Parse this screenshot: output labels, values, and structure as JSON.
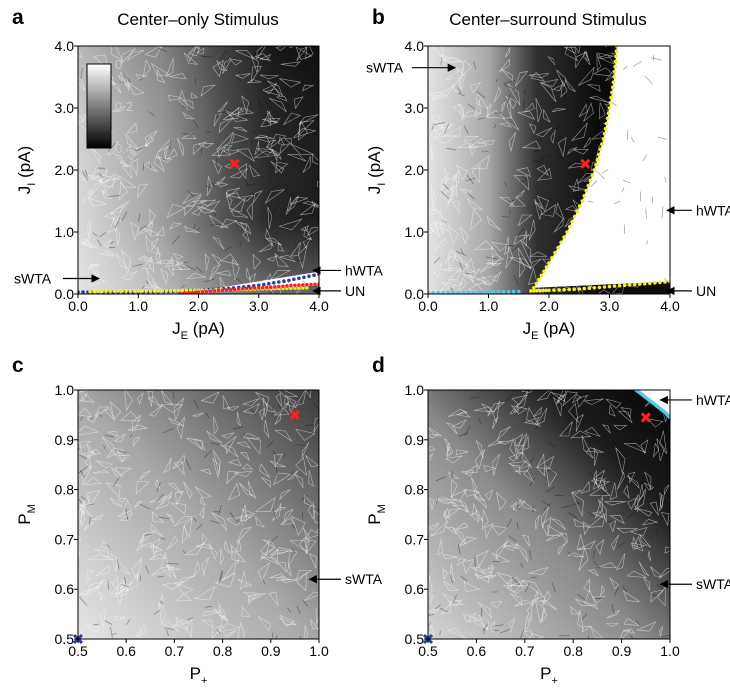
{
  "colors": {
    "light": "#f0f0f0",
    "dark": "#111111",
    "point_red": "#ff2020",
    "point_blue": "#2b3f9e",
    "point_yellow": "#f2ee2a",
    "point_cyan": "#52c8ef",
    "mesh": "#ffffff"
  },
  "chart_data": [
    {
      "panel": "a",
      "type": "heatmap",
      "title": "Center–only Stimulus",
      "xlabel": {
        "main": "J",
        "sub": "E",
        "unit": "(pA)"
      },
      "ylabel": {
        "main": "J",
        "sub": "I",
        "unit": "(pA)"
      },
      "xlim": [
        0,
        4
      ],
      "ylim": [
        0,
        4
      ],
      "x_ticks": [
        "0.0",
        "1.0",
        "2.0",
        "3.0",
        "4.0"
      ],
      "y_ticks": [
        "0.0",
        "1.0",
        "2.0",
        "3.0",
        "4.0"
      ],
      "colorbar": {
        "ticks": [
          "0",
          "0.2",
          "0.4"
        ],
        "range": [
          0,
          0.4
        ]
      },
      "regions": [
        {
          "label": "sWTA",
          "x": 0.35,
          "y": 0.25
        },
        {
          "label": "hWTA",
          "x": 3.9,
          "y": 0.38
        },
        {
          "label": "UN",
          "x": 3.9,
          "y": 0.05
        }
      ],
      "markers": [
        {
          "x": 2.6,
          "y": 2.1,
          "color": "red"
        }
      ],
      "boundary_points": [
        {
          "color": "blue",
          "x": [
            0.0,
            0.5,
            1.0,
            1.5,
            2.0,
            2.5,
            3.0,
            3.5,
            4.0
          ],
          "y": [
            0.03,
            0.03,
            0.03,
            0.04,
            0.06,
            0.09,
            0.14,
            0.22,
            0.32
          ]
        },
        {
          "color": "yellow",
          "x": [
            0.2,
            0.6,
            1.0,
            1.4,
            1.8,
            2.2,
            2.6,
            3.0,
            3.4,
            3.8
          ],
          "y": [
            0.04,
            0.05,
            0.05,
            0.05,
            0.06,
            0.06,
            0.07,
            0.08,
            0.09,
            0.1
          ]
        },
        {
          "color": "red",
          "x": [
            1.7,
            2.0,
            2.4,
            2.8,
            3.2,
            3.6,
            4.0
          ],
          "y": [
            0.0,
            0.03,
            0.06,
            0.09,
            0.11,
            0.14,
            0.16
          ]
        }
      ]
    },
    {
      "panel": "b",
      "type": "heatmap",
      "title": "Center–surround Stimulus",
      "xlabel": {
        "main": "J",
        "sub": "E",
        "unit": "(pA)"
      },
      "ylabel": {
        "main": "J",
        "sub": "I",
        "unit": "(pA)"
      },
      "xlim": [
        0,
        4
      ],
      "ylim": [
        0,
        4
      ],
      "x_ticks": [
        "0.0",
        "1.0",
        "2.0",
        "3.0",
        "4.0"
      ],
      "y_ticks": [
        "0.0",
        "1.0",
        "2.0",
        "3.0",
        "4.0"
      ],
      "regions": [
        {
          "label": "sWTA",
          "x": 0.45,
          "y": 3.65
        },
        {
          "label": "hWTA",
          "x": 3.95,
          "y": 1.35
        },
        {
          "label": "UN",
          "x": 3.95,
          "y": 0.05
        }
      ],
      "markers": [
        {
          "x": 2.6,
          "y": 2.1,
          "color": "red"
        }
      ],
      "boundary_points": [
        {
          "color": "yellow",
          "x": [
            1.75,
            2.0,
            2.3,
            2.55,
            2.75,
            2.9,
            3.0,
            3.08,
            3.12
          ],
          "y": [
            0.1,
            0.5,
            1.0,
            1.5,
            2.0,
            2.5,
            3.0,
            3.5,
            4.0
          ]
        },
        {
          "color": "yellow",
          "x": [
            1.7,
            2.0,
            2.5,
            3.0,
            3.5,
            4.0
          ],
          "y": [
            0.05,
            0.06,
            0.08,
            0.12,
            0.16,
            0.2
          ]
        },
        {
          "color": "cyan",
          "x": [
            0.0,
            0.5,
            1.0,
            1.5
          ],
          "y": [
            0.02,
            0.02,
            0.03,
            0.04
          ]
        }
      ]
    },
    {
      "panel": "c",
      "type": "heatmap",
      "xlabel": {
        "main": "P",
        "sub": "+",
        "unit": ""
      },
      "ylabel": {
        "main": "P",
        "sub": "M",
        "unit": ""
      },
      "xlim": [
        0.5,
        1.0
      ],
      "ylim": [
        0.5,
        1.0
      ],
      "x_ticks": [
        "0.5",
        "0.6",
        "0.7",
        "0.8",
        "0.9",
        "1.0"
      ],
      "y_ticks": [
        "0.5",
        "0.6",
        "0.7",
        "0.8",
        "0.9",
        "1.0"
      ],
      "regions": [
        {
          "label": "sWTA",
          "x": 0.98,
          "y": 0.62
        }
      ],
      "markers": [
        {
          "x": 0.95,
          "y": 0.95,
          "color": "red"
        },
        {
          "x": 0.5,
          "y": 0.5,
          "color": "blue"
        }
      ]
    },
    {
      "panel": "d",
      "type": "heatmap",
      "xlabel": {
        "main": "P",
        "sub": "+",
        "unit": ""
      },
      "ylabel": {
        "main": "P",
        "sub": "M",
        "unit": ""
      },
      "xlim": [
        0.5,
        1.0
      ],
      "ylim": [
        0.5,
        1.0
      ],
      "x_ticks": [
        "0.5",
        "0.6",
        "0.7",
        "0.8",
        "0.9",
        "1.0"
      ],
      "y_ticks": [
        "0.5",
        "0.6",
        "0.7",
        "0.8",
        "0.9",
        "1.0"
      ],
      "regions": [
        {
          "label": "hWTA",
          "x": 0.98,
          "y": 0.98
        },
        {
          "label": "sWTA",
          "x": 0.98,
          "y": 0.61
        }
      ],
      "markers": [
        {
          "x": 0.95,
          "y": 0.945,
          "color": "red"
        },
        {
          "x": 0.5,
          "y": 0.5,
          "color": "blue"
        }
      ],
      "boundary_points": [
        {
          "color": "cyan",
          "x": [
            0.93,
            0.95,
            0.97,
            0.99,
            1.0
          ],
          "y": [
            1.0,
            0.985,
            0.97,
            0.955,
            0.945
          ]
        }
      ]
    }
  ]
}
